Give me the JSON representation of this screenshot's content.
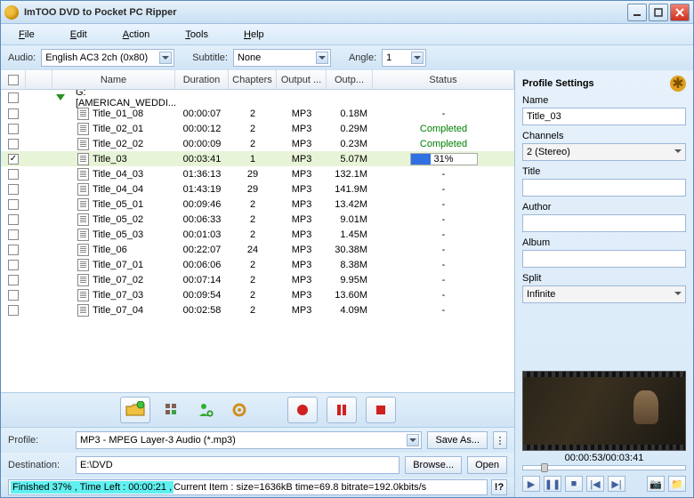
{
  "window": {
    "title": "ImTOO DVD to Pocket PC Ripper"
  },
  "menu": {
    "file": "File",
    "edit": "Edit",
    "action": "Action",
    "tools": "Tools",
    "help": "Help"
  },
  "audio": {
    "label": "Audio:",
    "value": "English AC3 2ch (0x80)"
  },
  "subtitle": {
    "label": "Subtitle:",
    "value": "None"
  },
  "angle": {
    "label": "Angle:",
    "value": "1"
  },
  "columns": {
    "name": "Name",
    "duration": "Duration",
    "chapters": "Chapters",
    "output": "Output ...",
    "outp": "Outp...",
    "status": "Status"
  },
  "group": {
    "name": "G:[AMERICAN_WEDDI..."
  },
  "rows": [
    {
      "checked": false,
      "name": "Title_01_08",
      "duration": "00:00:07",
      "chapters": "2",
      "output": "MP3",
      "outp": "0.18M",
      "status": "-",
      "status_type": "none"
    },
    {
      "checked": false,
      "name": "Title_02_01",
      "duration": "00:00:12",
      "chapters": "2",
      "output": "MP3",
      "outp": "0.29M",
      "status": "Completed",
      "status_type": "completed"
    },
    {
      "checked": false,
      "name": "Title_02_02",
      "duration": "00:00:09",
      "chapters": "2",
      "output": "MP3",
      "outp": "0.23M",
      "status": "Completed",
      "status_type": "completed"
    },
    {
      "checked": true,
      "name": "Title_03",
      "duration": "00:03:41",
      "chapters": "1",
      "output": "MP3",
      "outp": "5.07M",
      "status": "31%",
      "status_type": "progress",
      "progress_pct": 31
    },
    {
      "checked": false,
      "name": "Title_04_03",
      "duration": "01:36:13",
      "chapters": "29",
      "output": "MP3",
      "outp": "132.1M",
      "status": "-",
      "status_type": "none"
    },
    {
      "checked": false,
      "name": "Title_04_04",
      "duration": "01:43:19",
      "chapters": "29",
      "output": "MP3",
      "outp": "141.9M",
      "status": "-",
      "status_type": "none"
    },
    {
      "checked": false,
      "name": "Title_05_01",
      "duration": "00:09:46",
      "chapters": "2",
      "output": "MP3",
      "outp": "13.42M",
      "status": "-",
      "status_type": "none"
    },
    {
      "checked": false,
      "name": "Title_05_02",
      "duration": "00:06:33",
      "chapters": "2",
      "output": "MP3",
      "outp": "9.01M",
      "status": "-",
      "status_type": "none"
    },
    {
      "checked": false,
      "name": "Title_05_03",
      "duration": "00:01:03",
      "chapters": "2",
      "output": "MP3",
      "outp": "1.45M",
      "status": "-",
      "status_type": "none"
    },
    {
      "checked": false,
      "name": "Title_06",
      "duration": "00:22:07",
      "chapters": "24",
      "output": "MP3",
      "outp": "30.38M",
      "status": "-",
      "status_type": "none"
    },
    {
      "checked": false,
      "name": "Title_07_01",
      "duration": "00:06:06",
      "chapters": "2",
      "output": "MP3",
      "outp": "8.38M",
      "status": "-",
      "status_type": "none"
    },
    {
      "checked": false,
      "name": "Title_07_02",
      "duration": "00:07:14",
      "chapters": "2",
      "output": "MP3",
      "outp": "9.95M",
      "status": "-",
      "status_type": "none"
    },
    {
      "checked": false,
      "name": "Title_07_03",
      "duration": "00:09:54",
      "chapters": "2",
      "output": "MP3",
      "outp": "13.60M",
      "status": "-",
      "status_type": "none"
    },
    {
      "checked": false,
      "name": "Title_07_04",
      "duration": "00:02:58",
      "chapters": "2",
      "output": "MP3",
      "outp": "4.09M",
      "status": "-",
      "status_type": "none"
    }
  ],
  "profile": {
    "label": "Profile:",
    "value": "MP3 - MPEG Layer-3 Audio  (*.mp3)",
    "save_as": "Save As..."
  },
  "destination": {
    "label": "Destination:",
    "value": "E:\\DVD",
    "browse": "Browse...",
    "open": "Open"
  },
  "status": {
    "finished": "Finished 37% , Time Left : 00:00:21 , ",
    "current": "Current Item : size=1636kB time=69.8 bitrate=192.0kbits/s",
    "info_btn": "!?"
  },
  "settings": {
    "title": "Profile Settings",
    "name_label": "Name",
    "name_value": "Title_03",
    "channels_label": "Channels",
    "channels_value": "2 (Stereo)",
    "title_label": "Title",
    "title_value": "",
    "author_label": "Author",
    "author_value": "",
    "album_label": "Album",
    "album_value": "",
    "split_label": "Split",
    "split_value": "Infinite"
  },
  "preview": {
    "time": "00:00:53/00:03:41"
  },
  "colors": {
    "completed": "#008000",
    "progress_bar": "#3070e0",
    "selected_row": "#e8f4d8",
    "status_highlight": "#60f0f0"
  }
}
